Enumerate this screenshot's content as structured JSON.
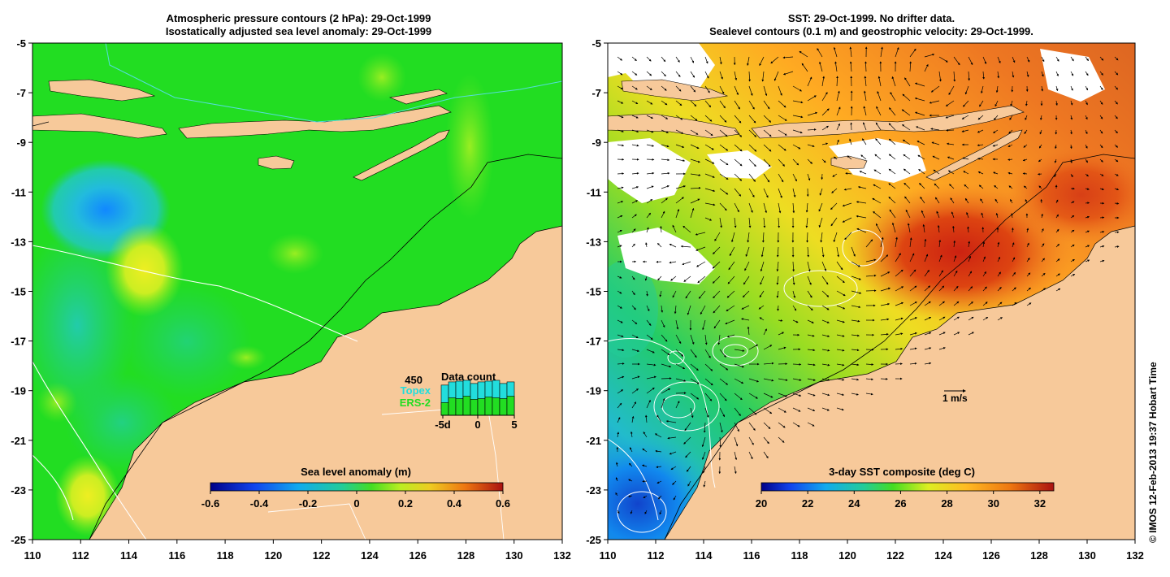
{
  "left_panel": {
    "title_line1": "Atmospheric pressure contours (2 hPa): 29-Oct-1999",
    "title_line2": "Isostatically adjusted sea level anomaly: 29-Oct-1999",
    "x_ticks": [
      "110",
      "112",
      "114",
      "116",
      "118",
      "120",
      "122",
      "124",
      "126",
      "128",
      "130",
      "132"
    ],
    "y_ticks": [
      "-5",
      "-7",
      "-9",
      "-11",
      "-13",
      "-15",
      "-17",
      "-19",
      "-21",
      "-23",
      "-25"
    ],
    "colorbar": {
      "label": "Sea level anomaly (m)",
      "ticks": [
        "-0.6",
        "-0.4",
        "-0.2",
        "0",
        "0.2",
        "0.4",
        "0.6"
      ],
      "min": -0.6,
      "max": 0.6
    },
    "data_count": {
      "title": "Data count",
      "max_label": "450",
      "series_topex": "Topex",
      "series_ers": "ERS-2",
      "x_ticks": [
        "-5d",
        "0",
        "5"
      ],
      "topex_counts": [
        380,
        420,
        430,
        440,
        400,
        420,
        430,
        440,
        400,
        420
      ],
      "ers_counts": [
        160,
        220,
        210,
        240,
        200,
        210,
        230,
        220,
        210,
        240
      ],
      "count_max": 450
    },
    "colors": {
      "ocean": "#22dd22",
      "land": "#f7c99a",
      "topex": "#22dddd",
      "ers": "#22dd22"
    }
  },
  "right_panel": {
    "title_line1": "SST: 29-Oct-1999. No drifter data.",
    "title_line2": "Sealevel contours (0.1 m) and geostrophic velocity: 29-Oct-1999.",
    "x_ticks": [
      "110",
      "112",
      "114",
      "116",
      "118",
      "120",
      "122",
      "124",
      "126",
      "128",
      "130",
      "132"
    ],
    "y_ticks": [
      "-5",
      "-7",
      "-9",
      "-11",
      "-13",
      "-15",
      "-17",
      "-19",
      "-21",
      "-23",
      "-25"
    ],
    "colorbar": {
      "label": "3-day SST composite (deg C)",
      "ticks": [
        "20",
        "22",
        "24",
        "26",
        "28",
        "30",
        "32"
      ],
      "min": 20,
      "max": 32.6
    },
    "velocity_scale_label": "1 m/s"
  },
  "credit": "© IMOS 12-Feb-2013 19:37 Hobart Time"
}
